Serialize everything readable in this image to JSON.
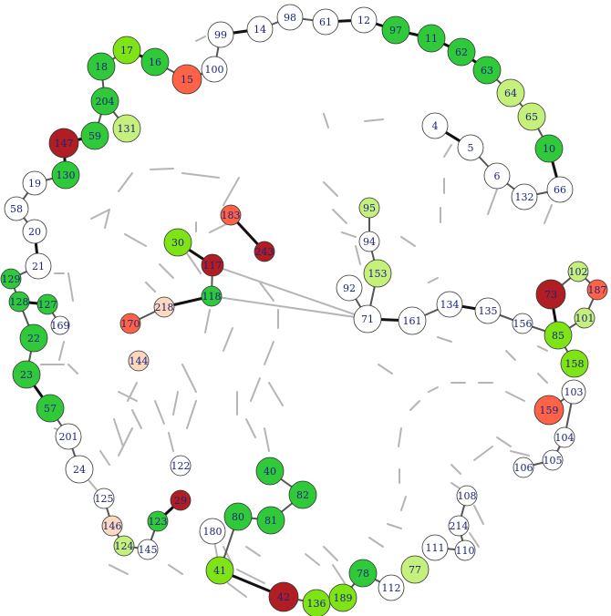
{
  "palette": {
    "bright_green": "#2fc93a",
    "lime": "#7fe416",
    "pale_lime": "#c6f07c",
    "light_green": "#d4f29a",
    "red": "#ff6347",
    "dark_red": "#b01e23",
    "peach": "#fcd9bd",
    "white": "#ffffff",
    "edge_gray": "#b5b5b5",
    "edge_dark": "#555555",
    "edge_black": "#111111",
    "label_color": "#1a237e"
  },
  "nodes": [
    {
      "id": "4",
      "label": "4",
      "color": "white"
    },
    {
      "id": "5",
      "label": "5",
      "color": "white"
    },
    {
      "id": "6",
      "label": "6",
      "color": "white"
    },
    {
      "id": "132",
      "label": "132",
      "color": "white"
    },
    {
      "id": "66",
      "label": "66",
      "color": "white"
    },
    {
      "id": "10",
      "label": "10",
      "color": "bright_green"
    },
    {
      "id": "65",
      "label": "65",
      "color": "pale_lime"
    },
    {
      "id": "64",
      "label": "64",
      "color": "pale_lime"
    },
    {
      "id": "63",
      "label": "63",
      "color": "bright_green"
    },
    {
      "id": "62",
      "label": "62",
      "color": "bright_green"
    },
    {
      "id": "11",
      "label": "11",
      "color": "bright_green"
    },
    {
      "id": "97",
      "label": "97",
      "color": "bright_green"
    },
    {
      "id": "12",
      "label": "12",
      "color": "white"
    },
    {
      "id": "61",
      "label": "61",
      "color": "white"
    },
    {
      "id": "98",
      "label": "98",
      "color": "white"
    },
    {
      "id": "14",
      "label": "14",
      "color": "white"
    },
    {
      "id": "99",
      "label": "99",
      "color": "white"
    },
    {
      "id": "100",
      "label": "100",
      "color": "white"
    },
    {
      "id": "15",
      "label": "15",
      "color": "red"
    },
    {
      "id": "16",
      "label": "16",
      "color": "bright_green"
    },
    {
      "id": "17",
      "label": "17",
      "color": "lime"
    },
    {
      "id": "18",
      "label": "18",
      "color": "bright_green"
    },
    {
      "id": "204",
      "label": "204",
      "color": "bright_green"
    },
    {
      "id": "131",
      "label": "131",
      "color": "pale_lime"
    },
    {
      "id": "59",
      "label": "59",
      "color": "bright_green"
    },
    {
      "id": "147",
      "label": "147",
      "color": "dark_red"
    },
    {
      "id": "130",
      "label": "130",
      "color": "bright_green"
    },
    {
      "id": "19",
      "label": "19",
      "color": "white"
    },
    {
      "id": "58",
      "label": "58",
      "color": "white"
    },
    {
      "id": "20",
      "label": "20",
      "color": "white"
    },
    {
      "id": "21",
      "label": "21",
      "color": "white"
    },
    {
      "id": "129",
      "label": "129",
      "color": "bright_green"
    },
    {
      "id": "128",
      "label": "128",
      "color": "bright_green"
    },
    {
      "id": "127",
      "label": "127",
      "color": "bright_green"
    },
    {
      "id": "169",
      "label": "169",
      "color": "white"
    },
    {
      "id": "22",
      "label": "22",
      "color": "bright_green"
    },
    {
      "id": "23",
      "label": "23",
      "color": "bright_green"
    },
    {
      "id": "57",
      "label": "57",
      "color": "bright_green"
    },
    {
      "id": "201",
      "label": "201",
      "color": "white"
    },
    {
      "id": "24",
      "label": "24",
      "color": "white"
    },
    {
      "id": "125",
      "label": "125",
      "color": "white"
    },
    {
      "id": "146",
      "label": "146",
      "color": "peach"
    },
    {
      "id": "124",
      "label": "124",
      "color": "pale_lime"
    },
    {
      "id": "145",
      "label": "145",
      "color": "white"
    },
    {
      "id": "123",
      "label": "123",
      "color": "bright_green"
    },
    {
      "id": "29",
      "label": "29",
      "color": "dark_red"
    },
    {
      "id": "122",
      "label": "122",
      "color": "white"
    },
    {
      "id": "144",
      "label": "144",
      "color": "peach"
    },
    {
      "id": "170",
      "label": "170",
      "color": "red"
    },
    {
      "id": "218",
      "label": "218",
      "color": "peach"
    },
    {
      "id": "118",
      "label": "118",
      "color": "bright_green"
    },
    {
      "id": "117",
      "label": "117",
      "color": "dark_red"
    },
    {
      "id": "30",
      "label": "30",
      "color": "lime"
    },
    {
      "id": "183",
      "label": "183",
      "color": "red"
    },
    {
      "id": "243",
      "label": "243",
      "color": "dark_red"
    },
    {
      "id": "40",
      "label": "40",
      "color": "bright_green"
    },
    {
      "id": "82",
      "label": "82",
      "color": "bright_green"
    },
    {
      "id": "81",
      "label": "81",
      "color": "bright_green"
    },
    {
      "id": "80",
      "label": "80",
      "color": "bright_green"
    },
    {
      "id": "180",
      "label": "180",
      "color": "white"
    },
    {
      "id": "41",
      "label": "41",
      "color": "lime"
    },
    {
      "id": "42",
      "label": "42",
      "color": "dark_red"
    },
    {
      "id": "136",
      "label": "136",
      "color": "lime"
    },
    {
      "id": "189",
      "label": "189",
      "color": "lime"
    },
    {
      "id": "78",
      "label": "78",
      "color": "bright_green"
    },
    {
      "id": "112",
      "label": "112",
      "color": "white"
    },
    {
      "id": "77",
      "label": "77",
      "color": "pale_lime"
    },
    {
      "id": "111",
      "label": "111",
      "color": "white"
    },
    {
      "id": "110",
      "label": "110",
      "color": "white"
    },
    {
      "id": "214",
      "label": "214",
      "color": "white"
    },
    {
      "id": "108",
      "label": "108",
      "color": "white"
    },
    {
      "id": "106",
      "label": "106",
      "color": "white"
    },
    {
      "id": "105",
      "label": "105",
      "color": "white"
    },
    {
      "id": "104",
      "label": "104",
      "color": "white"
    },
    {
      "id": "103",
      "label": "103",
      "color": "white"
    },
    {
      "id": "159",
      "label": "159",
      "color": "red"
    },
    {
      "id": "158",
      "label": "158",
      "color": "lime"
    },
    {
      "id": "85",
      "label": "85",
      "color": "lime"
    },
    {
      "id": "101",
      "label": "101",
      "color": "pale_lime"
    },
    {
      "id": "73",
      "label": "73",
      "color": "dark_red"
    },
    {
      "id": "102",
      "label": "102",
      "color": "pale_lime"
    },
    {
      "id": "187",
      "label": "187",
      "color": "red"
    },
    {
      "id": "156",
      "label": "156",
      "color": "white"
    },
    {
      "id": "135",
      "label": "135",
      "color": "white"
    },
    {
      "id": "134",
      "label": "134",
      "color": "white"
    },
    {
      "id": "161",
      "label": "161",
      "color": "white"
    },
    {
      "id": "71",
      "label": "71",
      "color": "white"
    },
    {
      "id": "92",
      "label": "92",
      "color": "white"
    },
    {
      "id": "153",
      "label": "153",
      "color": "pale_lime"
    },
    {
      "id": "94",
      "label": "94",
      "color": "white"
    },
    {
      "id": "95",
      "label": "95",
      "color": "pale_lime"
    }
  ],
  "edges": [
    {
      "from": "4",
      "to": "5",
      "weight": "strong"
    },
    {
      "from": "5",
      "to": "6",
      "weight": "medium"
    },
    {
      "from": "6",
      "to": "132",
      "weight": "medium"
    },
    {
      "from": "132",
      "to": "66",
      "weight": "medium"
    },
    {
      "from": "66",
      "to": "10",
      "weight": "strong"
    },
    {
      "from": "10",
      "to": "65",
      "weight": "medium"
    },
    {
      "from": "65",
      "to": "64",
      "weight": "medium"
    },
    {
      "from": "64",
      "to": "63",
      "weight": "medium"
    },
    {
      "from": "63",
      "to": "62",
      "weight": "strong"
    },
    {
      "from": "62",
      "to": "11",
      "weight": "strong"
    },
    {
      "from": "11",
      "to": "97",
      "weight": "strong"
    },
    {
      "from": "97",
      "to": "12",
      "weight": "strong"
    },
    {
      "from": "12",
      "to": "61",
      "weight": "strong"
    },
    {
      "from": "61",
      "to": "98",
      "weight": "medium"
    },
    {
      "from": "98",
      "to": "14",
      "weight": "medium"
    },
    {
      "from": "14",
      "to": "99",
      "weight": "strong"
    },
    {
      "from": "99",
      "to": "100",
      "weight": "medium"
    },
    {
      "from": "100",
      "to": "15",
      "weight": "medium"
    },
    {
      "from": "15",
      "to": "16",
      "weight": "medium"
    },
    {
      "from": "16",
      "to": "17",
      "weight": "strong"
    },
    {
      "from": "17",
      "to": "18",
      "weight": "medium"
    },
    {
      "from": "18",
      "to": "204",
      "weight": "medium"
    },
    {
      "from": "204",
      "to": "131",
      "weight": "medium"
    },
    {
      "from": "204",
      "to": "59",
      "weight": "medium"
    },
    {
      "from": "59",
      "to": "147",
      "weight": "strong"
    },
    {
      "from": "147",
      "to": "130",
      "weight": "strong"
    },
    {
      "from": "130",
      "to": "19",
      "weight": "medium"
    },
    {
      "from": "19",
      "to": "58",
      "weight": "medium"
    },
    {
      "from": "58",
      "to": "20",
      "weight": "medium"
    },
    {
      "from": "20",
      "to": "21",
      "weight": "strong"
    },
    {
      "from": "21",
      "to": "129",
      "weight": "medium"
    },
    {
      "from": "129",
      "to": "128",
      "weight": "medium"
    },
    {
      "from": "128",
      "to": "127",
      "weight": "strong"
    },
    {
      "from": "127",
      "to": "169",
      "weight": "medium"
    },
    {
      "from": "128",
      "to": "22",
      "weight": "medium"
    },
    {
      "from": "22",
      "to": "23",
      "weight": "medium"
    },
    {
      "from": "23",
      "to": "57",
      "weight": "strong"
    },
    {
      "from": "57",
      "to": "201",
      "weight": "medium"
    },
    {
      "from": "201",
      "to": "24",
      "weight": "medium"
    },
    {
      "from": "125",
      "to": "146",
      "weight": "medium"
    },
    {
      "from": "146",
      "to": "124",
      "weight": "medium"
    },
    {
      "from": "124",
      "to": "145",
      "weight": "medium"
    },
    {
      "from": "145",
      "to": "123",
      "weight": "medium"
    },
    {
      "from": "123",
      "to": "29",
      "weight": "strong"
    },
    {
      "from": "170",
      "to": "218",
      "weight": "medium"
    },
    {
      "from": "218",
      "to": "118",
      "weight": "strong"
    },
    {
      "from": "30",
      "to": "117",
      "weight": "strong"
    },
    {
      "from": "117",
      "to": "118",
      "weight": "medium"
    },
    {
      "from": "183",
      "to": "243",
      "weight": "strong"
    },
    {
      "from": "40",
      "to": "82",
      "weight": "medium"
    },
    {
      "from": "82",
      "to": "81",
      "weight": "medium"
    },
    {
      "from": "81",
      "to": "80",
      "weight": "medium"
    },
    {
      "from": "80",
      "to": "41",
      "weight": "medium"
    },
    {
      "from": "41",
      "to": "42",
      "weight": "strong"
    },
    {
      "from": "42",
      "to": "136",
      "weight": "medium"
    },
    {
      "from": "136",
      "to": "189",
      "weight": "medium"
    },
    {
      "from": "189",
      "to": "78",
      "weight": "medium"
    },
    {
      "from": "78",
      "to": "112",
      "weight": "medium"
    },
    {
      "from": "111",
      "to": "110",
      "weight": "medium"
    },
    {
      "from": "110",
      "to": "214",
      "weight": "medium"
    },
    {
      "from": "214",
      "to": "108",
      "weight": "medium"
    },
    {
      "from": "106",
      "to": "105",
      "weight": "medium"
    },
    {
      "from": "105",
      "to": "104",
      "weight": "medium"
    },
    {
      "from": "104",
      "to": "103",
      "weight": "medium"
    },
    {
      "from": "103",
      "to": "159",
      "weight": "medium"
    },
    {
      "from": "158",
      "to": "85",
      "weight": "medium"
    },
    {
      "from": "85",
      "to": "73",
      "weight": "strong"
    },
    {
      "from": "85",
      "to": "101",
      "weight": "medium"
    },
    {
      "from": "73",
      "to": "102",
      "weight": "medium"
    },
    {
      "from": "102",
      "to": "187",
      "weight": "medium"
    },
    {
      "from": "187",
      "to": "101",
      "weight": "medium"
    },
    {
      "from": "85",
      "to": "156",
      "weight": "medium"
    },
    {
      "from": "156",
      "to": "135",
      "weight": "medium"
    },
    {
      "from": "135",
      "to": "134",
      "weight": "strong"
    },
    {
      "from": "134",
      "to": "161",
      "weight": "medium"
    },
    {
      "from": "161",
      "to": "71",
      "weight": "strong"
    },
    {
      "from": "71",
      "to": "92",
      "weight": "medium"
    },
    {
      "from": "71",
      "to": "153",
      "weight": "medium"
    },
    {
      "from": "153",
      "to": "94",
      "weight": "medium"
    },
    {
      "from": "94",
      "to": "95",
      "weight": "medium"
    },
    {
      "from": "118",
      "to": "71",
      "weight": "faint"
    },
    {
      "from": "117",
      "to": "71",
      "weight": "faint"
    },
    {
      "from": "24",
      "to": "125",
      "weight": "faint"
    },
    {
      "from": "41",
      "to": "180",
      "weight": "faint"
    },
    {
      "from": "6",
      "to": "4",
      "weight": "none"
    }
  ]
}
